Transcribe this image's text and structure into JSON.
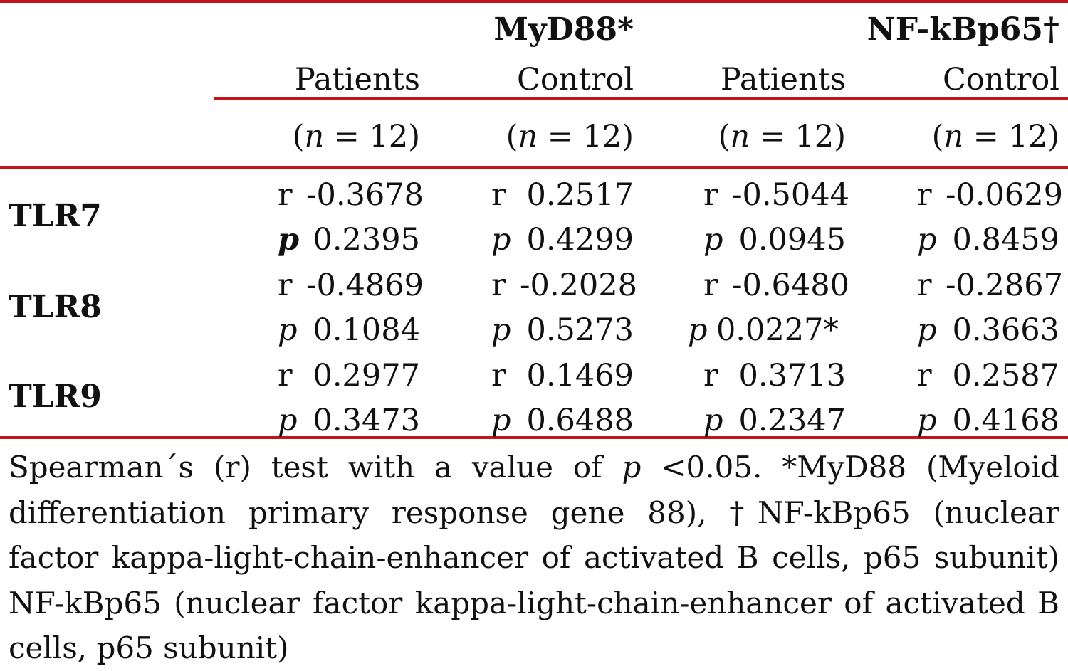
{
  "table": {
    "group_headers": [
      "MyD88*",
      "NF-kBp65†"
    ],
    "sub_headers": [
      "Patients",
      "Control",
      "Patients",
      "Control"
    ],
    "n_labels": [
      {
        "open": "(",
        "n": "n",
        "rest": " = 12)"
      },
      {
        "open": "(",
        "n": "n",
        "rest": " = 12)"
      },
      {
        "open": "(",
        "n": "n",
        "rest": " = 12)"
      },
      {
        "open": "(",
        "n": "n",
        "rest": " = 12)"
      }
    ],
    "rows": [
      {
        "label": "TLR7",
        "r_label": "r",
        "p_label": "p",
        "r": [
          "-0.3678",
          "0.2517",
          "-0.5044",
          "-0.0629"
        ],
        "p": [
          "0.2395",
          "0.4299",
          "0.0945",
          "0.8459"
        ]
      },
      {
        "label": "TLR8",
        "r_label": "r",
        "p_label": "p",
        "r": [
          "-0.4869",
          "-0.2028",
          "-0.6480",
          "-0.2867"
        ],
        "p": [
          "0.1084",
          "0.5273",
          "0.0227*",
          "0.3663"
        ]
      },
      {
        "label": "TLR9",
        "r_label": "r",
        "p_label": "p",
        "r": [
          "0.2977",
          "0.1469",
          "0.3713",
          "0.2587"
        ],
        "p": [
          "0.3473",
          "0.6488",
          "0.2347",
          "0.4168"
        ]
      }
    ]
  },
  "footnote": {
    "part1": "Spearman´s (r) test with a value of ",
    "p": "p",
    "part2": " <0.05. *MyD88 (Myeloid differentiation primary response gene 88), †NF-kBp65 (nuclear factor kappa-light-chain-enhancer of activated B cells, p65 subunit) NF-kBp65 (nuclear factor kappa-light-chain-enhancer of activated B cells, p65 subunit)"
  },
  "colors": {
    "rule": "#c1141b",
    "text": "#111111"
  }
}
